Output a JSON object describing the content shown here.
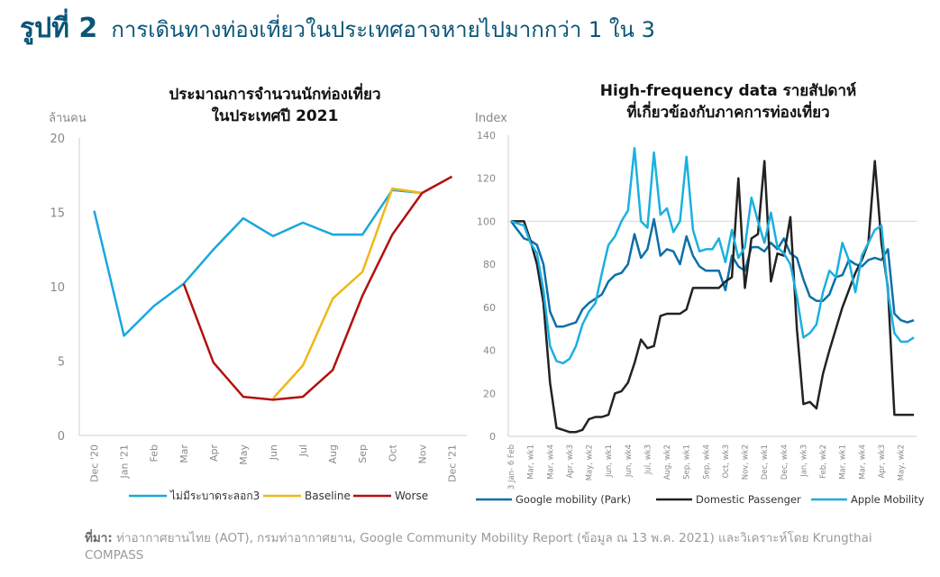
{
  "header": {
    "figure_number": "รูปที่ 2",
    "title": "การเดินทางท่องเที่ยวในประเทศอาจหายไปมากกว่า 1 ใน 3"
  },
  "source": {
    "label": "ที่มา:",
    "text": "ท่าอากาศยานไทย (AOT), กรมท่าอากาศยาน, Google Community Mobility Report (ข้อมูล ณ 13 พ.ค. 2021) และวิเคราะห์โดย Krungthai COMPASS"
  },
  "chart_data": [
    {
      "type": "line",
      "title": "ประมาณการจำนวนนักท่องเที่ยวในประเทศปี 2021",
      "title_lines": [
        "ประมาณการจำนวนนักท่องเที่ยว",
        "ในประเทศปี 2021"
      ],
      "ylabel": "ล้านคน",
      "xlabel": "",
      "ylim": [
        0,
        20
      ],
      "yticks": [
        0,
        5,
        10,
        15,
        20
      ],
      "grid": false,
      "legend_position": "bottom",
      "categories": [
        "Dec '20",
        "Jan '21",
        "Feb",
        "Mar",
        "Apr",
        "May",
        "Jun",
        "Jul",
        "Aug",
        "Sep",
        "Oct",
        "Nov",
        "Dec '21"
      ],
      "series": [
        {
          "name": "ไม่มีระบาดระลอก3",
          "color": "#1aa7dc",
          "values": [
            15.1,
            6.7,
            8.7,
            10.2,
            12.5,
            14.6,
            13.4,
            14.3,
            13.5,
            13.5,
            16.5,
            16.3,
            null
          ]
        },
        {
          "name": "Baseline",
          "color": "#f0b715",
          "values": [
            null,
            null,
            null,
            null,
            null,
            null,
            2.5,
            4.7,
            9.2,
            11.0,
            16.6,
            16.3,
            null
          ]
        },
        {
          "name": "Worse",
          "color": "#b0120e",
          "values": [
            null,
            null,
            null,
            10.2,
            4.9,
            2.6,
            2.4,
            2.6,
            4.4,
            9.4,
            13.5,
            16.3,
            17.4
          ]
        }
      ]
    },
    {
      "type": "line",
      "title": "High-frequency data รายสัปดาห์ที่เกี่ยวข้องกับภาคการท่องเที่ยว",
      "title_lines": [
        "High-frequency data รายสัปดาห์",
        "ที่เกี่ยวข้องกับภาคการท่องเที่ยว"
      ],
      "ylabel": "Index",
      "xlabel": "",
      "ylim": [
        0,
        140
      ],
      "yticks": [
        0,
        20,
        40,
        60,
        80,
        100,
        120,
        140
      ],
      "grid": false,
      "reference_line": 100,
      "legend_position": "bottom",
      "x_tick_labels": [
        "3 Jan- 6 Feb",
        "Mar, wk1",
        "Mar, wk4",
        "Apr, wk3",
        "May, wk2",
        "Jun, wk1",
        "Jun, wk4",
        "Jul, wk3",
        "Aug, wk2",
        "Sep, wk1",
        "Sep, wk4",
        "Oct, wk3",
        "Nov, wk2",
        "Dec, wk1",
        "Dec, wk4",
        "Jan, wk3",
        "Feb, wk2",
        "Mar, wk1",
        "Mar, wk4",
        "Apr, wk3",
        "May, wk2"
      ],
      "tick_every": 3,
      "series": [
        {
          "name": "Google mobility (Park)",
          "color": "#0d6fa8",
          "values": [
            100,
            96,
            92,
            91,
            89,
            80,
            58,
            51,
            51,
            52,
            53,
            59,
            62,
            64,
            66,
            72,
            75,
            76,
            80,
            94,
            83,
            87,
            101,
            84,
            87,
            86,
            80,
            93,
            84,
            79,
            77,
            77,
            77,
            68,
            84,
            79,
            77,
            88,
            88,
            86,
            90,
            87,
            92,
            85,
            83,
            73,
            65,
            63,
            63,
            66,
            74,
            75,
            82,
            80,
            79,
            82,
            83,
            82,
            87,
            57,
            54,
            53,
            54
          ]
        },
        {
          "name": "Domestic Passenger",
          "color": "#222222",
          "values": [
            100,
            100,
            100,
            91,
            80,
            62,
            25,
            4,
            3,
            2,
            2,
            3,
            8,
            9,
            9,
            10,
            20,
            21,
            25,
            34,
            45,
            41,
            42,
            56,
            57,
            57,
            57,
            59,
            69,
            69,
            69,
            69,
            69,
            72,
            74,
            120,
            69,
            92,
            94,
            128,
            72,
            85,
            84,
            102,
            50,
            15,
            16,
            13,
            29,
            40,
            50,
            60,
            68,
            76,
            82,
            90,
            128,
            90,
            69,
            10,
            10,
            10,
            10
          ]
        },
        {
          "name": "Apple Mobility",
          "color": "#1ab0e0",
          "values": [
            100,
            99,
            98,
            90,
            85,
            68,
            42,
            35,
            34,
            36,
            42,
            52,
            58,
            62,
            76,
            89,
            93,
            100,
            105,
            134,
            100,
            97,
            132,
            103,
            106,
            95,
            100,
            130,
            96,
            86,
            87,
            87,
            92,
            81,
            96,
            83,
            88,
            111,
            100,
            90,
            104,
            88,
            85,
            80,
            65,
            46,
            48,
            52,
            67,
            77,
            74,
            90,
            82,
            67,
            84,
            90,
            96,
            98,
            67,
            48,
            44,
            44,
            46
          ]
        }
      ]
    }
  ]
}
